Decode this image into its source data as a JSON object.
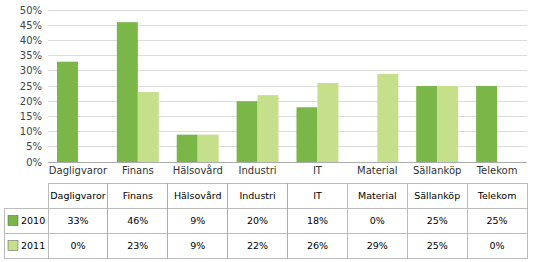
{
  "chart_data": {
    "type": "bar",
    "categories": [
      "Dagligvaror",
      "Finans",
      "Hälsovård",
      "Industri",
      "IT",
      "Material",
      "Sällanköp",
      "Telekom"
    ],
    "series": [
      {
        "name": "2010",
        "color": "#7ab648",
        "values": [
          33,
          46,
          9,
          20,
          18,
          0,
          25,
          25
        ],
        "value_labels": [
          "33%",
          "46%",
          "9%",
          "20%",
          "18%",
          "0%",
          "25%",
          "25%"
        ]
      },
      {
        "name": "2011",
        "color": "#c5df8a",
        "values": [
          0,
          23,
          9,
          22,
          26,
          29,
          25,
          0
        ],
        "value_labels": [
          "0%",
          "23%",
          "9%",
          "22%",
          "26%",
          "29%",
          "25%",
          "0%"
        ]
      }
    ],
    "ylim": [
      0,
      50
    ],
    "yticks": [
      {
        "value": 0,
        "label": "0%"
      },
      {
        "value": 5,
        "label": "5%"
      },
      {
        "value": 10,
        "label": "10%"
      },
      {
        "value": 15,
        "label": "15%"
      },
      {
        "value": 20,
        "label": "20%"
      },
      {
        "value": 25,
        "label": "25%"
      },
      {
        "value": 30,
        "label": "30%"
      },
      {
        "value": 35,
        "label": "35%"
      },
      {
        "value": 40,
        "label": "40%"
      },
      {
        "value": 45,
        "label": "45%"
      },
      {
        "value": 50,
        "label": "50%"
      }
    ],
    "grid": true,
    "data_labels": true
  }
}
